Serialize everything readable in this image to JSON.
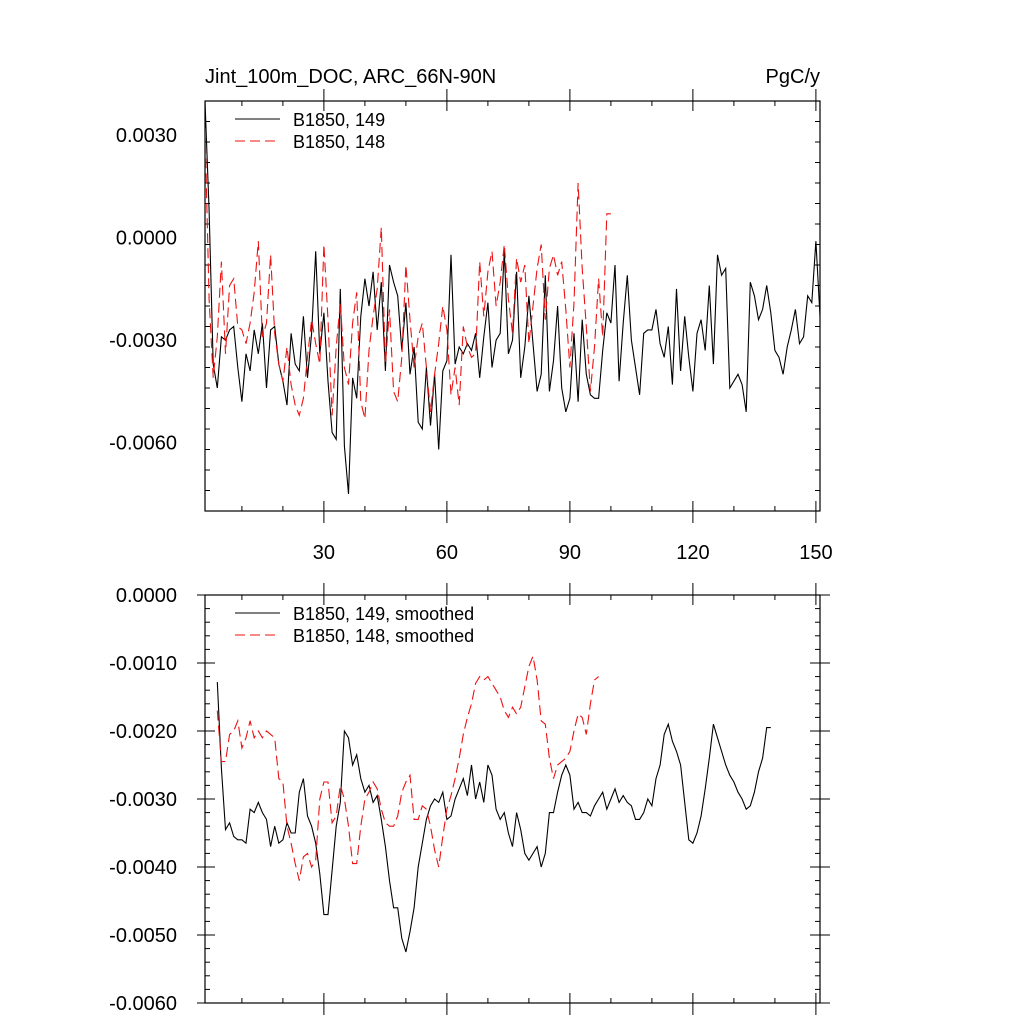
{
  "chart_data": [
    {
      "type": "line",
      "title": "Jint_100m_DOC, ARC_66N-90N",
      "units": "PgC/y",
      "xlabel": "",
      "ylabel": "",
      "xlim": [
        1,
        151
      ],
      "ylim": [
        -0.008,
        0.004
      ],
      "xticks": [
        30,
        60,
        90,
        120,
        150
      ],
      "xtick_labels": [
        "30",
        "60",
        "90",
        "120",
        "150"
      ],
      "yticks": [
        0.003,
        0.0,
        -0.003,
        -0.006
      ],
      "ytick_labels": [
        "0.0030",
        "0.0000",
        "-0.0030",
        "-0.0060"
      ],
      "legend": [
        "B1850, 149",
        "B1850, 148"
      ],
      "legend_position": "top-left",
      "series": [
        {
          "name": "B1850, 149",
          "color": "#000000",
          "dash": "solid",
          "x_start": 1,
          "values": [
            0.004,
            0.0008,
            -0.0037,
            -0.0044,
            -0.0029,
            -0.003,
            -0.0027,
            -0.0026,
            -0.0038,
            -0.0048,
            -0.0034,
            -0.0039,
            -0.0027,
            -0.0034,
            -0.0025,
            -0.0044,
            -0.0027,
            -0.0026,
            -0.0037,
            -0.0042,
            -0.0049,
            -0.0028,
            -0.0037,
            -0.0039,
            -0.0023,
            -0.0041,
            -0.0028,
            -0.0004,
            -0.0034,
            -0.0022,
            -0.0042,
            -0.0057,
            -0.0059,
            -0.0015,
            -0.0061,
            -0.0075,
            -0.0041,
            -0.0047,
            -0.0023,
            -0.0012,
            -0.002,
            -0.001,
            -0.0027,
            -0.0013,
            -0.0039,
            -0.0008,
            -0.0013,
            -0.0017,
            -0.0033,
            -0.0019,
            -0.004,
            -0.0032,
            -0.0054,
            -0.0056,
            -0.0038,
            -0.0055,
            -0.004,
            -0.0062,
            -0.0039,
            -0.0036,
            -0.0005,
            -0.0037,
            -0.0032,
            -0.0034,
            -0.0031,
            -0.0033,
            -0.0028,
            -0.0041,
            -0.0029,
            -0.0019,
            -0.0038,
            -0.003,
            -0.0028,
            -0.0004,
            -0.0034,
            -0.003,
            -0.001,
            -0.0041,
            -0.0032,
            -0.0017,
            -0.0031,
            -0.0045,
            -0.004,
            -0.0011,
            -0.0045,
            -0.0036,
            -0.002,
            -0.0044,
            -0.0051,
            -0.0047,
            -0.0028,
            -0.0048,
            -0.0024,
            -0.004,
            -0.0046,
            -0.0047,
            -0.0047,
            -0.0033,
            -0.0022,
            -0.0025,
            -0.0008,
            -0.0042,
            -0.0025,
            -0.0011,
            -0.003,
            -0.0038,
            -0.0046,
            -0.0028,
            -0.0027,
            -0.0027,
            -0.0021,
            -0.0031,
            -0.0035,
            -0.0026,
            -0.0043,
            -0.0015,
            -0.0039,
            -0.0023,
            -0.0035,
            -0.0045,
            -0.0028,
            -0.0024,
            -0.0033,
            -0.0014,
            -0.0037,
            -0.0005,
            -0.0011,
            -0.0009,
            -0.0044,
            -0.0042,
            -0.004,
            -0.0043,
            -0.0051,
            -0.0013,
            -0.0017,
            -0.0024,
            -0.0021,
            -0.0014,
            -0.0022,
            -0.0033,
            -0.0035,
            -0.004,
            -0.0032,
            -0.0027,
            -0.0021,
            -0.0031,
            -0.0029,
            -0.0017,
            -0.0019,
            -0.0001,
            -0.0023
          ]
        },
        {
          "name": "B1850, 148",
          "color": "#ee1111",
          "dash": "dashed",
          "x_start": 1,
          "values": [
            0.0032,
            -0.0018,
            -0.0041,
            -0.0029,
            -0.0007,
            -0.0034,
            -0.0014,
            -0.0012,
            -0.0026,
            -0.0027,
            -0.0031,
            -0.0025,
            -0.0016,
            -0.0001,
            -0.0029,
            -0.0025,
            -0.0005,
            -0.0028,
            -0.0037,
            -0.0042,
            -0.0032,
            -0.0043,
            -0.0049,
            -0.0052,
            -0.0047,
            -0.0035,
            -0.0024,
            -0.0031,
            -0.0037,
            -0.0002,
            -0.0024,
            -0.0052,
            -0.0032,
            -0.0019,
            -0.0038,
            -0.0043,
            -0.0025,
            -0.0016,
            -0.0048,
            -0.0053,
            -0.0033,
            -0.0023,
            -0.0015,
            0.0003,
            -0.0037,
            -0.0021,
            -0.0045,
            -0.0048,
            -0.0035,
            -0.0008,
            -0.0024,
            -0.0038,
            -0.0029,
            -0.0025,
            -0.0038,
            -0.0051,
            -0.004,
            -0.0031,
            -0.002,
            -0.0027,
            -0.0046,
            -0.0038,
            -0.0049,
            -0.0026,
            -0.0032,
            -0.0035,
            -0.0034,
            -0.0007,
            -0.0023,
            -0.001,
            -0.0004,
            -0.002,
            -0.0013,
            -0.0002,
            -0.0018,
            -0.0028,
            -0.0006,
            -0.0013,
            -0.0008,
            -0.0031,
            -0.002,
            -0.0009,
            -0.0002,
            -0.0024,
            -0.0009,
            -0.0005,
            -0.0011,
            -0.0007,
            -0.0021,
            -0.0038,
            -0.0019,
            0.0016,
            -0.0009,
            -0.0026,
            -0.0045,
            -0.0032,
            -0.0012,
            -0.0029,
            0.0007,
            0.0007
          ]
        }
      ]
    },
    {
      "type": "line",
      "title": "",
      "xlabel": "",
      "ylabel": "",
      "xlim": [
        1,
        151
      ],
      "ylim": [
        -0.006,
        0.0
      ],
      "xticks": [
        30,
        60,
        90,
        120,
        150
      ],
      "yticks": [
        0.0,
        -0.001,
        -0.002,
        -0.003,
        -0.004,
        -0.005,
        -0.006
      ],
      "ytick_labels": [
        "0.0000",
        "-0.0010",
        "-0.0020",
        "-0.0030",
        "-0.0040",
        "-0.0050",
        "-0.0060"
      ],
      "legend": [
        "B1850, 149, smoothed",
        "B1850, 148, smoothed"
      ],
      "legend_position": "top-left",
      "series": [
        {
          "name": "B1850, 149, smoothed",
          "color": "#000000",
          "dash": "solid",
          "x_start": 4,
          "values": [
            -0.00128,
            -0.00255,
            -0.00345,
            -0.00335,
            -0.00355,
            -0.0036,
            -0.0036,
            -0.00365,
            -0.00315,
            -0.0032,
            -0.00305,
            -0.0032,
            -0.0033,
            -0.0037,
            -0.0034,
            -0.00365,
            -0.0036,
            -0.00335,
            -0.0035,
            -0.0035,
            -0.0029,
            -0.0027,
            -0.00325,
            -0.0034,
            -0.00365,
            -0.0041,
            -0.0047,
            -0.0047,
            -0.00405,
            -0.0034,
            -0.00305,
            -0.002,
            -0.0021,
            -0.0025,
            -0.00235,
            -0.0027,
            -0.0029,
            -0.0028,
            -0.00305,
            -0.00295,
            -0.0033,
            -0.0037,
            -0.0042,
            -0.0046,
            -0.0046,
            -0.00505,
            -0.00525,
            -0.00495,
            -0.0046,
            -0.004,
            -0.00365,
            -0.0033,
            -0.0031,
            -0.003,
            -0.00305,
            -0.0029,
            -0.0033,
            -0.00325,
            -0.003,
            -0.00285,
            -0.0027,
            -0.00295,
            -0.0025,
            -0.003,
            -0.00275,
            -0.00305,
            -0.0025,
            -0.00265,
            -0.00315,
            -0.0033,
            -0.0032,
            -0.0035,
            -0.0037,
            -0.0032,
            -0.00345,
            -0.0038,
            -0.0039,
            -0.0038,
            -0.0037,
            -0.004,
            -0.0038,
            -0.0032,
            -0.0032,
            -0.0029,
            -0.00265,
            -0.0025,
            -0.00265,
            -0.00315,
            -0.00305,
            -0.0032,
            -0.0032,
            -0.00325,
            -0.0031,
            -0.003,
            -0.0029,
            -0.00315,
            -0.003,
            -0.00285,
            -0.00305,
            -0.00295,
            -0.00305,
            -0.0031,
            -0.0033,
            -0.0033,
            -0.0032,
            -0.003,
            -0.0031,
            -0.0027,
            -0.0025,
            -0.00205,
            -0.0019,
            -0.00215,
            -0.0023,
            -0.0025,
            -0.00305,
            -0.0036,
            -0.00365,
            -0.0035,
            -0.00325,
            -0.00285,
            -0.0024,
            -0.0019,
            -0.0021,
            -0.0023,
            -0.0025,
            -0.00265,
            -0.00275,
            -0.0029,
            -0.003,
            -0.00315,
            -0.0031,
            -0.0029,
            -0.0026,
            -0.0024,
            -0.00195,
            -0.00195
          ]
        },
        {
          "name": "B1850, 148, smoothed",
          "color": "#ee1111",
          "dash": "dashed",
          "x_start": 4,
          "values": [
            -0.0017,
            -0.00245,
            -0.00245,
            -0.00205,
            -0.002,
            -0.00185,
            -0.00225,
            -0.0021,
            -0.00185,
            -0.0021,
            -0.002,
            -0.0021,
            -0.002,
            -0.00205,
            -0.0021,
            -0.0027,
            -0.00275,
            -0.0034,
            -0.00365,
            -0.00395,
            -0.0042,
            -0.00385,
            -0.0038,
            -0.004,
            -0.0039,
            -0.003,
            -0.00275,
            -0.00275,
            -0.00335,
            -0.00325,
            -0.0028,
            -0.003,
            -0.0034,
            -0.00395,
            -0.00395,
            -0.0034,
            -0.003,
            -0.0029,
            -0.00275,
            -0.00285,
            -0.00315,
            -0.00335,
            -0.0034,
            -0.0034,
            -0.00325,
            -0.0029,
            -0.00275,
            -0.00265,
            -0.0033,
            -0.0033,
            -0.0031,
            -0.00315,
            -0.0034,
            -0.00375,
            -0.004,
            -0.00355,
            -0.00315,
            -0.00295,
            -0.0027,
            -0.0024,
            -0.00205,
            -0.0018,
            -0.0016,
            -0.0013,
            -0.0012,
            -0.00125,
            -0.0012,
            -0.0013,
            -0.0014,
            -0.0015,
            -0.0017,
            -0.0018,
            -0.00165,
            -0.00175,
            -0.00165,
            -0.00135,
            -0.00105,
            -0.0009,
            -0.00125,
            -0.00185,
            -0.0019,
            -0.0024,
            -0.0027,
            -0.0025,
            -0.00245,
            -0.0024,
            -0.0023,
            -0.002,
            -0.00175,
            -0.0018,
            -0.00205,
            -0.0016,
            -0.00125,
            -0.0012
          ]
        }
      ]
    }
  ]
}
